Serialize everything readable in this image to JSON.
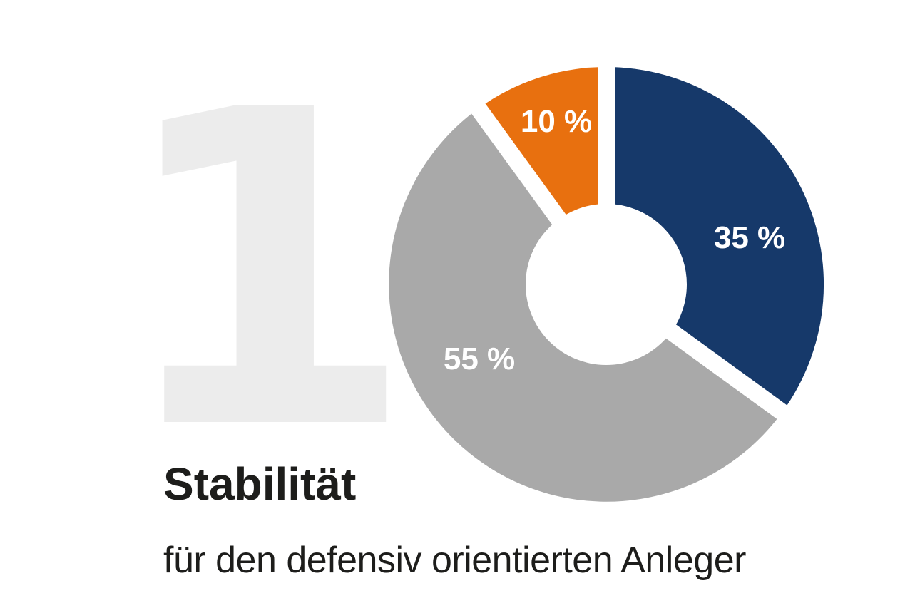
{
  "page": {
    "big_number": "1",
    "title": "Stabilität",
    "subtitle": "für den defensiv orientierten Anleger"
  },
  "colors": {
    "navy": "#16396A",
    "gray": "#A9A9A9",
    "orange": "#E8700F",
    "watermark_gray": "#ECECEC",
    "text_dark": "#1D1D1B",
    "label_white": "#FFFFFF",
    "background": "#FFFFFF"
  },
  "chart_data": {
    "type": "pie",
    "donut": true,
    "title": "Stabilität",
    "subtitle": "für den defensiv orientierten Anleger",
    "start_angle_deg": 0,
    "direction": "clockwise",
    "legend_position": "none",
    "grid": false,
    "segments": [
      {
        "label": "35 %",
        "value": 35,
        "color_key": "navy"
      },
      {
        "label": "55 %",
        "value": 55,
        "color_key": "gray"
      },
      {
        "label": "10 %",
        "value": 10,
        "color_key": "orange"
      }
    ]
  }
}
